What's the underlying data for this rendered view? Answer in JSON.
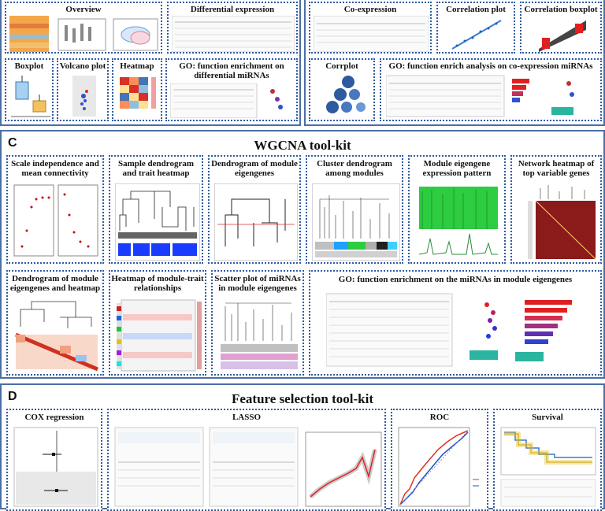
{
  "sections": {
    "top_left": {
      "overview": "Overview",
      "differential_expression": "Differential expression",
      "boxplot": "Boxplot",
      "volcano_plot": "Volcano plot",
      "heatmap": "Heatmap",
      "go_diff": "GO: function enrichment on differential miRNAs"
    },
    "top_right": {
      "co_expression": "Co-expression",
      "correlation_plot": "Correlation plot",
      "correlation_boxplot": "Correlation boxplot",
      "corrplot": "Corrplot",
      "go_coexp": "GO: function enrich analysis on co-expression miRNAs"
    },
    "C": {
      "letter": "C",
      "title": "WGCNA tool-kit",
      "scale_independence": "Scale independence and mean connectivity",
      "sample_dendrogram": "Sample dendrogram and trait heatmap",
      "dendrogram_module": "Dendrogram of module eigengenes",
      "cluster_dendrogram": "Cluster dendrogram among modules",
      "module_eigengene": "Module eigengene expression pattern",
      "network_heatmap": "Network heatmap of top variable genes",
      "dendrogram_heatmap": "Dendrogram of module eigengenes and heatmap",
      "heatmap_trait": "Heatmap of module-trait relationships",
      "scatter_mirnas": "Scatter plot of miRNAs in module eigengenes",
      "go_module": "GO: function enrichment on the miRNAs in module eigengenes"
    },
    "D": {
      "letter": "D",
      "title": "Feature selection tool-kit",
      "cox": "COX regression",
      "lasso": "LASSO",
      "roc": "ROC",
      "survival": "Survival"
    }
  },
  "colors": {
    "section_border": "#4a6fa5",
    "box_border": "#2f5aa0",
    "heat_red": "#c62828",
    "heat_green": "#2ecc40",
    "module_blue": "#1a3cff"
  }
}
